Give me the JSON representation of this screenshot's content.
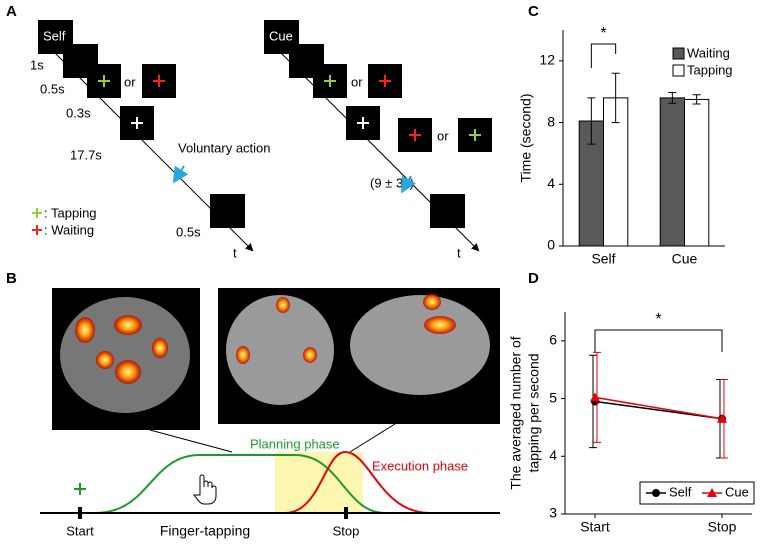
{
  "panel_a": {
    "label": "A",
    "self_box": "Self",
    "self_t1": "1s",
    "self_t2": "0.5s",
    "self_or": "or",
    "self_t3": "0.3s",
    "self_t4": "17.7s",
    "voluntary": "Voluntary action",
    "self_t5": "0.5s",
    "self_axis": "t",
    "legend_tapping": ": Tapping",
    "legend_waiting": ": Waiting",
    "cue_box": "Cue",
    "cue_or1": "or",
    "cue_or2": "or",
    "cue_interval": "(9 ± 3s)",
    "cue_axis": "t"
  },
  "panel_b": {
    "label": "B",
    "planning": "Planning phase",
    "execution": "Execution phase",
    "start": "Start",
    "task": "Finger-tapping",
    "stop": "Stop"
  },
  "chart_data": [
    {
      "type": "bar",
      "panel_label": "C",
      "ylabel": "Time (second)",
      "categories": [
        "Self",
        "Cue"
      ],
      "series": [
        {
          "name": "Waiting",
          "color": "#595959",
          "values": [
            8.1,
            9.6
          ],
          "errors": [
            1.5,
            0.35
          ]
        },
        {
          "name": "Tapping",
          "color": "#ffffff",
          "values": [
            9.6,
            9.5
          ],
          "errors": [
            1.6,
            0.3
          ]
        }
      ],
      "ylim": [
        0,
        14
      ],
      "yticks": [
        0,
        4,
        8,
        12
      ],
      "annotation": "*",
      "legend": "upper right"
    },
    {
      "type": "line",
      "panel_label": "D",
      "ylabel": [
        "The averaged number of",
        "tapping per second"
      ],
      "categories": [
        "Start",
        "Stop"
      ],
      "series": [
        {
          "name": "Self",
          "color": "#000000",
          "marker": "circle",
          "values": [
            4.95,
            4.65
          ],
          "errors": [
            0.8,
            0.68
          ]
        },
        {
          "name": "Cue",
          "color": "#e8000b",
          "marker": "triangle",
          "values": [
            5.02,
            4.65
          ],
          "errors": [
            0.78,
            0.68
          ]
        }
      ],
      "ylim": [
        3,
        6.5
      ],
      "yticks": [
        3,
        4,
        5,
        6
      ],
      "annotation": "*",
      "legend": "lower right"
    }
  ]
}
